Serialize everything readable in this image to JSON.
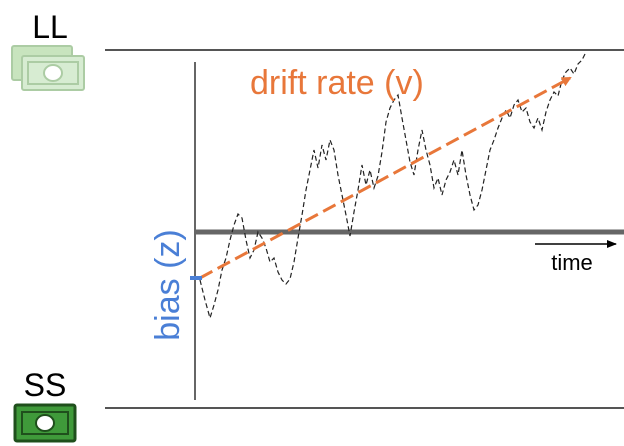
{
  "labels": {
    "upper_option": "LL",
    "lower_option": "SS",
    "drift": "drift rate (v)",
    "bias": "bias (z)",
    "time": "time"
  }
}
